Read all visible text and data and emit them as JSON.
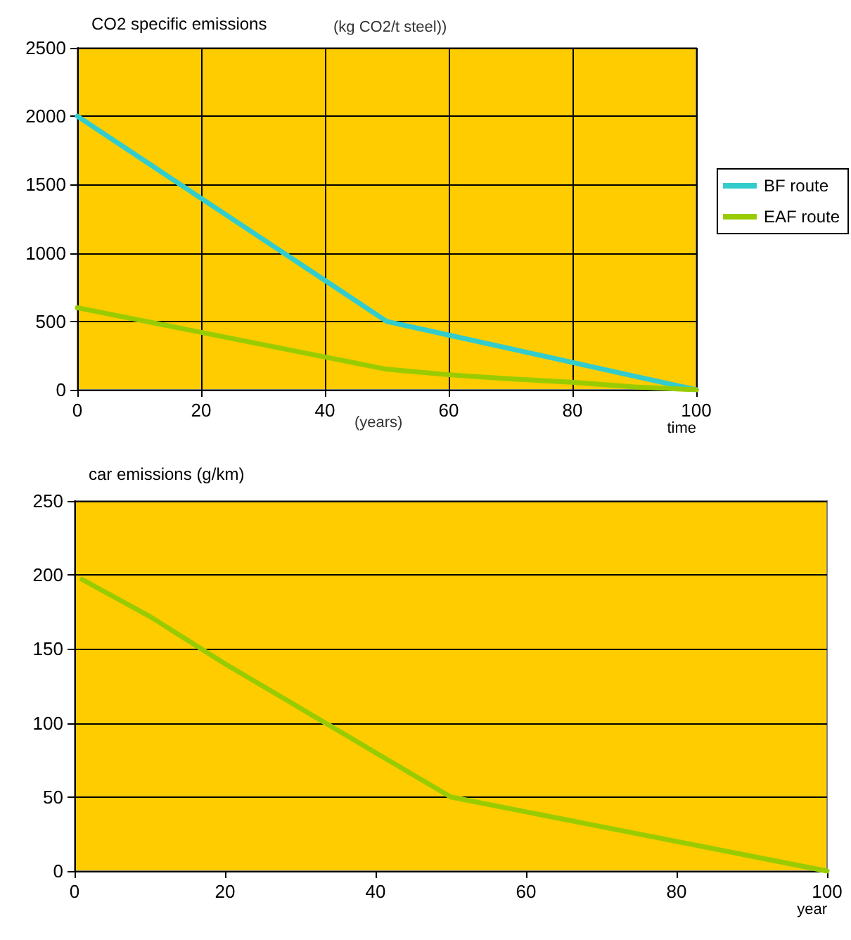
{
  "chart_data": [
    {
      "type": "line",
      "title": "CO2 specific emissions",
      "subtitle": "(kg CO2/t steel))",
      "xlabel": "time",
      "annotations": [
        "(years)"
      ],
      "x": [
        0,
        10,
        20,
        30,
        40,
        50,
        60,
        70,
        80,
        90,
        100
      ],
      "series": [
        {
          "name": "BF route",
          "color": "#33cccc",
          "values": [
            2000,
            1700,
            1400,
            1100,
            800,
            500,
            400,
            300,
            200,
            100,
            0
          ]
        },
        {
          "name": "EAF route",
          "color": "#99cc00",
          "values": [
            600,
            510,
            420,
            330,
            240,
            150,
            110,
            80,
            55,
            20,
            0
          ]
        }
      ],
      "xlim": [
        0,
        100
      ],
      "xticks": [
        0,
        20,
        40,
        60,
        80,
        100
      ],
      "ylim": [
        0,
        2500
      ],
      "yticks": [
        0,
        500,
        1000,
        1500,
        2000,
        2500
      ],
      "grid": true,
      "legend": "right",
      "marker": "none",
      "line_style": "solid"
    },
    {
      "type": "line",
      "title": "car emissions (g/km)",
      "xlabel": "year",
      "x": [
        1,
        10,
        20,
        30,
        40,
        50,
        60,
        70,
        80,
        90,
        100
      ],
      "series": [
        {
          "color": "#99cc00",
          "values": [
            197,
            172,
            140,
            110,
            80,
            50,
            40,
            30,
            20,
            10,
            0
          ]
        }
      ],
      "xlim": [
        0,
        100
      ],
      "xticks": [
        0,
        20,
        40,
        60,
        80,
        100
      ],
      "ylim": [
        0,
        250
      ],
      "yticks": [
        0,
        50,
        100,
        150,
        200,
        250
      ],
      "grid": "y",
      "marker": "none",
      "line_style": "solid"
    }
  ]
}
